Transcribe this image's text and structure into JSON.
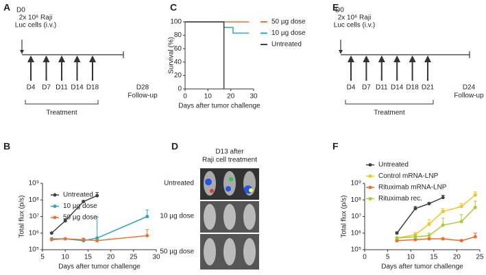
{
  "panel_labels": [
    "A",
    "B",
    "C",
    "D",
    "E",
    "F"
  ],
  "timeline_a": {
    "start": "D0",
    "cells": [
      "2x 10⁶ Raji",
      "Luc cells (i.v.)"
    ],
    "days": [
      "D4",
      "D7",
      "D11",
      "D14",
      "D18"
    ],
    "end": [
      "D28",
      "Follow-up"
    ],
    "bracket": "Treatment"
  },
  "timeline_e": {
    "start": "D0",
    "cells": [
      "2x 10⁶ Raji",
      "Luc cells (i.v.)"
    ],
    "days": [
      "D4",
      "D7",
      "D11",
      "D14",
      "D18",
      "D21"
    ],
    "end": [
      "D24",
      "Follow-up"
    ],
    "bracket": "Treatment"
  },
  "imaging": {
    "title": [
      "D13 after",
      "Raji cell treatment"
    ],
    "rows": [
      "Untreated",
      "10 µg dose",
      "50 µg dose"
    ]
  },
  "chart_data": [
    {
      "type": "line",
      "x_label": "Days after tumor challenge",
      "y_label": "Total flux (p/s)",
      "log_y": true,
      "grid": false,
      "legend": "upper-left",
      "xlim": [
        5,
        30
      ],
      "xticks": [
        5,
        10,
        15,
        20,
        25,
        30
      ],
      "ylim": [
        100000,
        1000000000
      ],
      "yticks": [
        {
          "value": 100000,
          "label": "10⁵"
        },
        {
          "value": 1000000,
          "label": "10⁶"
        },
        {
          "value": 10000000,
          "label": "10⁷"
        },
        {
          "value": 100000000,
          "label": "10⁸"
        },
        {
          "value": 1000000000,
          "label": "10⁹"
        }
      ],
      "series": [
        {
          "name": "Untreated",
          "color": "#404040",
          "x": [
            7,
            10,
            14,
            17
          ],
          "values": [
            1000000,
            5500000,
            80000000,
            180000000
          ],
          "errors": [
            100000,
            1500000,
            10000000,
            100000000
          ]
        },
        {
          "name": "10 µg dose",
          "color": "#2aa6b5",
          "x": [
            7,
            10,
            14,
            17,
            28
          ],
          "values": [
            450000,
            450000,
            350000,
            500000,
            10000000
          ],
          "errors": [
            50000,
            50000,
            50000,
            9000000,
            15000000
          ]
        },
        {
          "name": "50 µg dose",
          "color": "#f07030",
          "x": [
            7,
            10,
            14,
            17,
            28
          ],
          "values": [
            400000,
            450000,
            400000,
            350000,
            700000
          ],
          "errors": [
            50000,
            50000,
            100000,
            50000,
            900000
          ]
        }
      ]
    },
    {
      "type": "step",
      "x_label": "Days after tumor challenge",
      "y_label": "Survival (%)",
      "log_y": false,
      "grid": false,
      "legend": "right",
      "xlim": [
        0,
        30
      ],
      "xticks": [
        0,
        10,
        20,
        30
      ],
      "ylim": [
        0,
        100
      ],
      "yticks": [
        0,
        20,
        40,
        60,
        80,
        100
      ],
      "series": [
        {
          "name": "50 µg dose",
          "color": "#f07030",
          "x": [
            0,
            28
          ],
          "values": [
            100,
            100
          ]
        },
        {
          "name": "10 µg dose",
          "color": "#2aa6b5",
          "x": [
            0,
            17,
            21,
            28
          ],
          "values": [
            100,
            91.7,
            83.3,
            83.3
          ]
        },
        {
          "name": "Untreated",
          "color": "#404040",
          "x": [
            0,
            17
          ],
          "values": [
            100,
            0
          ]
        }
      ]
    },
    {
      "type": "line",
      "x_label": "Days after tumor challenge",
      "y_label": "Total flux (p/s)",
      "log_y": true,
      "grid": false,
      "legend": "upper-left",
      "xlim": [
        0,
        25
      ],
      "xticks": [
        0,
        5,
        10,
        15,
        20,
        25
      ],
      "ylim": [
        100000,
        1000000000
      ],
      "yticks": [
        {
          "value": 100000,
          "label": "10⁵"
        },
        {
          "value": 1000000,
          "label": "10⁶"
        },
        {
          "value": 10000000,
          "label": "10⁷"
        },
        {
          "value": 100000000,
          "label": "10⁸"
        },
        {
          "value": 1000000000,
          "label": "10⁹"
        }
      ],
      "series": [
        {
          "name": "Untreated",
          "color": "#404040",
          "x": [
            7,
            11,
            14,
            17
          ],
          "values": [
            1000000,
            30000000,
            60000000,
            140000000
          ],
          "errors": [
            200000,
            10000000,
            10000000,
            50000000
          ]
        },
        {
          "name": "Control mRNA-LNP",
          "color": "#f5c518",
          "x": [
            7,
            11,
            14,
            17,
            21,
            24
          ],
          "values": [
            500000,
            800000,
            3500000,
            20000000,
            40000000,
            200000000
          ],
          "errors": [
            100000,
            300000,
            3000000,
            10000000,
            20000000,
            100000000
          ]
        },
        {
          "name": "Rituximab mRNA-LNP",
          "color": "#f06a28",
          "x": [
            7,
            11,
            14,
            17,
            21,
            24
          ],
          "values": [
            350000,
            400000,
            450000,
            450000,
            350000,
            600000
          ],
          "errors": [
            50000,
            50000,
            50000,
            50000,
            50000,
            400000
          ]
        },
        {
          "name": "Rituximab rec.",
          "color": "#a8cc2e",
          "x": [
            7,
            11,
            14,
            17,
            21,
            24
          ],
          "values": [
            500000,
            600000,
            700000,
            3000000,
            5000000,
            35000000
          ],
          "errors": [
            100000,
            200000,
            300000,
            5000000,
            8000000,
            50000000
          ]
        }
      ]
    }
  ]
}
